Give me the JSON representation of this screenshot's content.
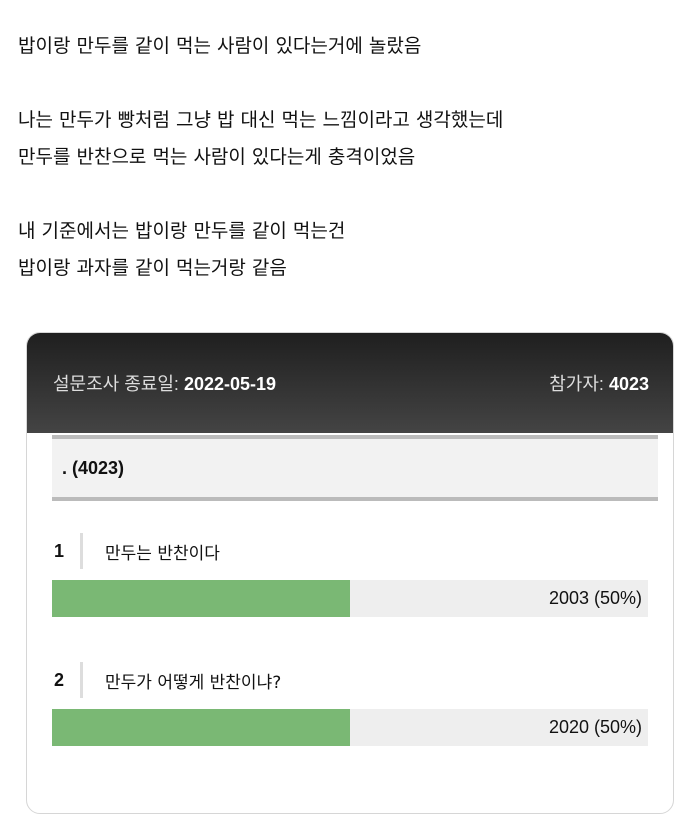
{
  "post": {
    "lines": [
      "밥이랑 만두를 같이 먹는 사람이 있다는거에 놀랐음",
      "나는 만두가 빵처럼 그냥 밥 대신 먹는 느낌이라고 생각했는데",
      "만두를 반찬으로 먹는 사람이 있다는게 충격이었음",
      "내 기준에서는 밥이랑 만두를 같이 먹는건",
      "밥이랑 과자를 같이 먹는거랑 같음"
    ]
  },
  "poll": {
    "end_label": "설문조사 종료일:",
    "end_date": "2022-05-19",
    "participants_label": "참가자:",
    "participants": "4023",
    "question": ". (4023)",
    "bar_color": "#7ab874",
    "options": [
      {
        "num": "1",
        "label": "만두는 반찬이다",
        "result": "2003 (50%)",
        "percent": 50
      },
      {
        "num": "2",
        "label": "만두가 어떻게 반찬이냐?",
        "result": "2020 (50%)",
        "percent": 50
      }
    ]
  }
}
